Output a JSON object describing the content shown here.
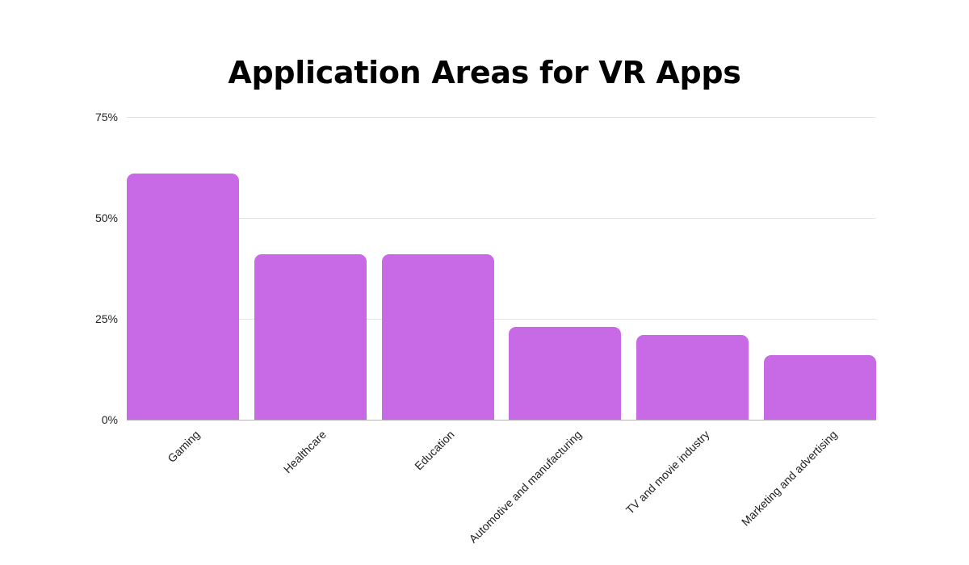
{
  "chart_data": {
    "type": "bar",
    "title": "Application Areas for VR Apps",
    "xlabel": "",
    "ylabel": "",
    "categories": [
      "Gaming",
      "Healthcare",
      "Education",
      "Automotive and manufacturing",
      "TV and movie industry",
      "Marketing and advertising"
    ],
    "values": [
      61,
      41,
      41,
      23,
      21,
      16
    ],
    "ylim": [
      0,
      75
    ],
    "yticks": [
      "0%",
      "25%",
      "50%",
      "75%"
    ],
    "ytick_values": [
      0,
      25,
      50,
      75
    ],
    "grid": true,
    "legend": null,
    "bar_color": "#c86ae6"
  },
  "labels": {
    "title": "Application Areas for VR Apps",
    "yticks": [
      "75%",
      "50%",
      "25%",
      "0%"
    ],
    "categories": [
      "Gaming",
      "Healthcare",
      "Education",
      "Automotive and manufacturing",
      "TV and movie industry",
      "Marketing and advertising"
    ]
  }
}
